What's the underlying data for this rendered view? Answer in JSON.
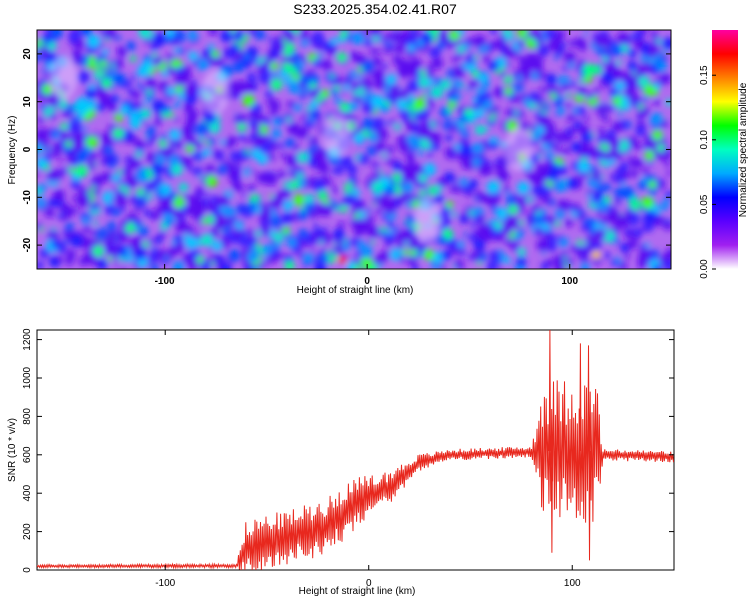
{
  "title": "S233.2025.354.02.41.R07",
  "chart_data": [
    {
      "type": "heatmap",
      "title": "S233.2025.354.02.41.R07",
      "xlabel": "Height of straight line (km)",
      "ylabel": "Frequency (Hz)",
      "xlim": [
        -163,
        150
      ],
      "ylim": [
        -25,
        25
      ],
      "xticks": [
        -100,
        0,
        100
      ],
      "xtick_labels": [
        "-100",
        "0",
        "100"
      ],
      "yticks": [
        -20,
        -10,
        0,
        10,
        20
      ],
      "ytick_labels": [
        "-20",
        "-10",
        "0",
        "10",
        "20"
      ],
      "colorbar": {
        "label": "Normalized spectral amplitude",
        "range": [
          0,
          0.185
        ],
        "ticks": [
          0,
          0.05,
          0.1,
          0.15
        ],
        "tick_labels": [
          "0.00",
          "0.05",
          "0.10",
          "0.15"
        ],
        "colors": [
          "#ffffff",
          "#a020f0",
          "#5a00ff",
          "#0000ff",
          "#00aaff",
          "#00ffc0",
          "#00ff00",
          "#ffff00",
          "#ff8000",
          "#ff0000",
          "#ff00a0"
        ]
      },
      "description_of_field": "noisy speckle field, mostly low amplitude (violet/blue) with scattered cyan/green peaks; brightest red point near x=-12, y=-23 and x=113, y=-22"
    },
    {
      "type": "line",
      "xlabel": "Height of straight line (km)",
      "ylabel": "SNR (10 * v/v)",
      "xlim": [
        -163,
        150
      ],
      "ylim": [
        0,
        1250
      ],
      "xticks": [
        -100,
        0,
        100
      ],
      "xtick_labels": [
        "-100",
        "0",
        "100"
      ],
      "yticks": [
        0,
        200,
        400,
        600,
        800,
        1000,
        1200
      ],
      "ytick_labels": [
        "0",
        "200",
        "400",
        "600",
        "800",
        "1000",
        "1200"
      ],
      "series_color": "#e8281e",
      "envelope": [
        {
          "x": -163,
          "base": 20,
          "amp": 8
        },
        {
          "x": -65,
          "base": 22,
          "amp": 10
        },
        {
          "x": -60,
          "base": 120,
          "amp": 150
        },
        {
          "x": -40,
          "base": 170,
          "amp": 140
        },
        {
          "x": -20,
          "base": 230,
          "amp": 150
        },
        {
          "x": -10,
          "base": 320,
          "amp": 150
        },
        {
          "x": 10,
          "base": 430,
          "amp": 90
        },
        {
          "x": 25,
          "base": 560,
          "amp": 45
        },
        {
          "x": 40,
          "base": 600,
          "amp": 30
        },
        {
          "x": 80,
          "base": 615,
          "amp": 30
        },
        {
          "x": 86,
          "base": 620,
          "amp": 380
        },
        {
          "x": 112,
          "base": 620,
          "amp": 380
        },
        {
          "x": 115,
          "base": 600,
          "amp": 30
        },
        {
          "x": 150,
          "base": 590,
          "amp": 30
        }
      ],
      "notable_points": [
        {
          "x": 89,
          "y": 1250
        },
        {
          "x": 90,
          "y": 90
        },
        {
          "x": 104,
          "y": 1180
        },
        {
          "x": 108,
          "y": 1170
        },
        {
          "x": 108.5,
          "y": 50
        }
      ]
    }
  ]
}
